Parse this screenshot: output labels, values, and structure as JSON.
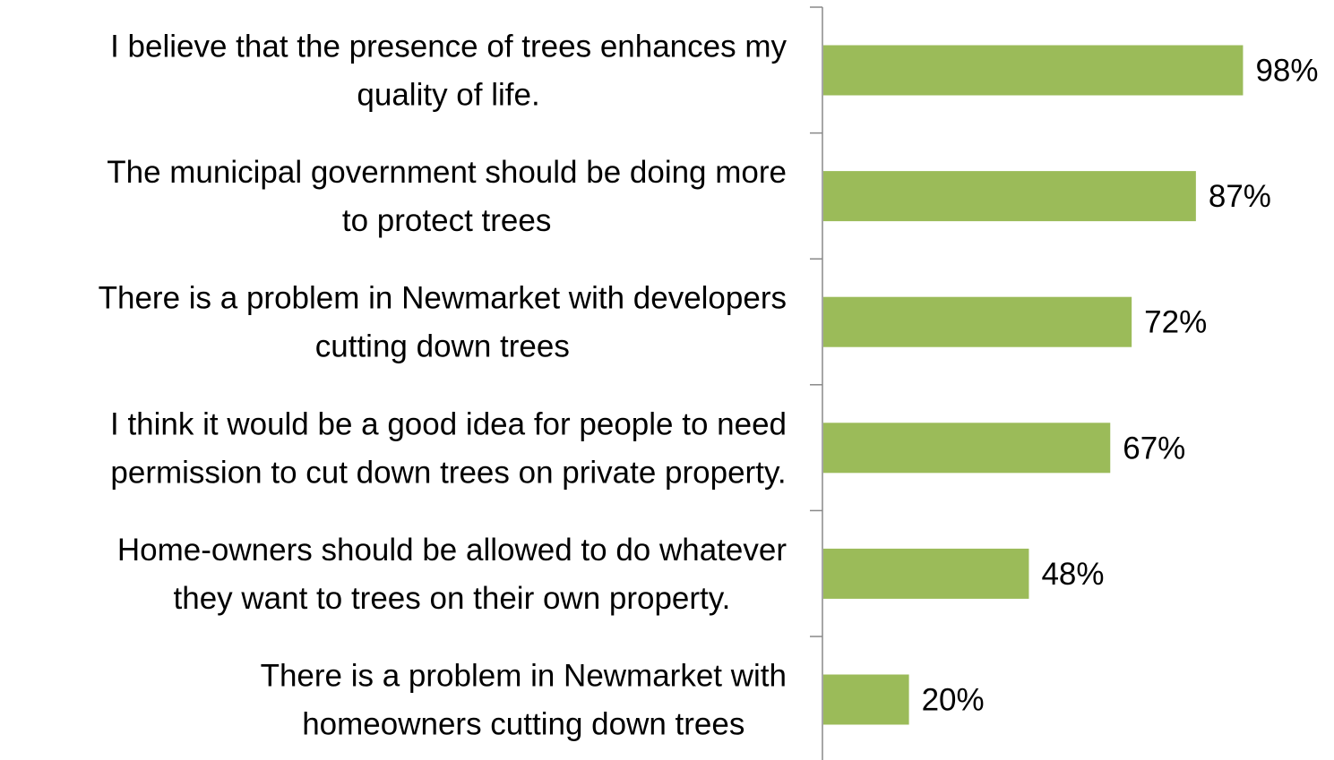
{
  "chart_data": {
    "type": "bar",
    "orientation": "horizontal",
    "categories": [
      [
        "I believe that the presence of trees enhances my",
        "quality of life."
      ],
      [
        "The municipal government should be doing more",
        "to protect trees"
      ],
      [
        "There is a problem in Newmarket with developers",
        "cutting down trees"
      ],
      [
        "I think it would be a good idea for people to need",
        "permission to cut down trees on private property."
      ],
      [
        "Home-owners should be allowed to do whatever",
        "they want to trees on their own property."
      ],
      [
        "There is a problem in Newmarket with",
        "homeowners cutting down trees"
      ]
    ],
    "values": [
      98,
      87,
      72,
      67,
      48,
      20
    ],
    "value_labels": [
      "98%",
      "87%",
      "72%",
      "67%",
      "48%",
      "20%"
    ],
    "xlim": [
      0,
      100
    ],
    "bar_color": "#9BBB59",
    "axis_color": "#888888",
    "grid": false,
    "legend": "none"
  }
}
